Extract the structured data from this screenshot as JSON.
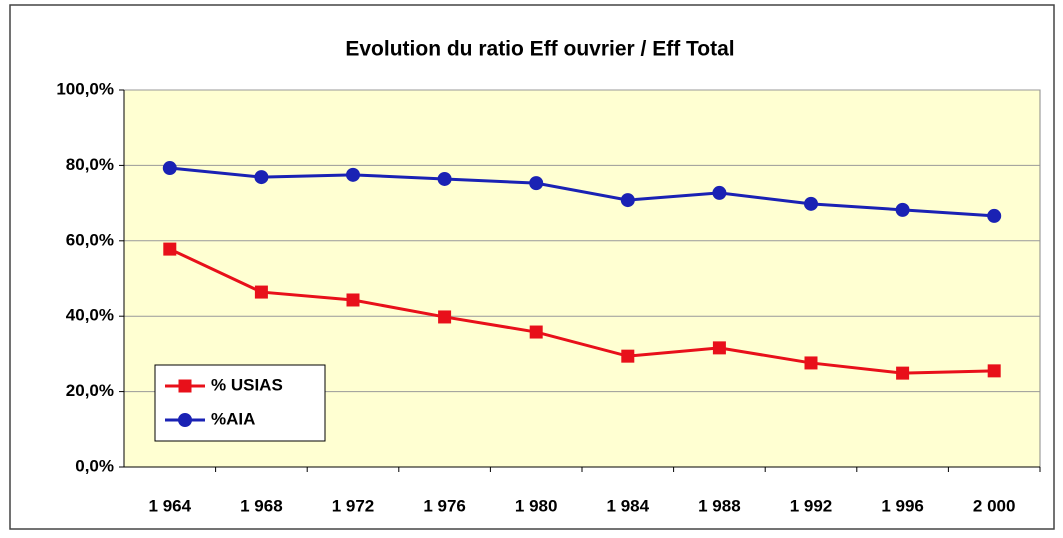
{
  "chart_data": {
    "type": "line",
    "title": "Evolution du ratio Eff ouvrier / Eff Total",
    "categories": [
      "1 964",
      "1 968",
      "1 972",
      "1 976",
      "1 980",
      "1 984",
      "1 988",
      "1 992",
      "1 996",
      "2 000"
    ],
    "series": [
      {
        "name": "% USIAS",
        "color": "#e8101a",
        "marker": "square",
        "values": [
          57.8,
          46.4,
          44.3,
          39.8,
          35.8,
          29.4,
          31.6,
          27.6,
          24.9,
          25.5
        ]
      },
      {
        "name": "%AIA",
        "color": "#1a22b4",
        "marker": "circle",
        "values": [
          79.3,
          76.9,
          77.5,
          76.4,
          75.3,
          70.8,
          72.7,
          69.8,
          68.2,
          66.6
        ]
      }
    ],
    "ylim": [
      0,
      100
    ],
    "yticks": [
      {
        "value": 0,
        "label": "0,0%"
      },
      {
        "value": 20,
        "label": "20,0%"
      },
      {
        "value": 40,
        "label": "40,0%"
      },
      {
        "value": 60,
        "label": "60,0%"
      },
      {
        "value": 80,
        "label": "80,0%"
      },
      {
        "value": 100,
        "label": "100,0%"
      }
    ],
    "grid": true,
    "legend": "lower-left",
    "plot_background": "#ffffd2"
  }
}
